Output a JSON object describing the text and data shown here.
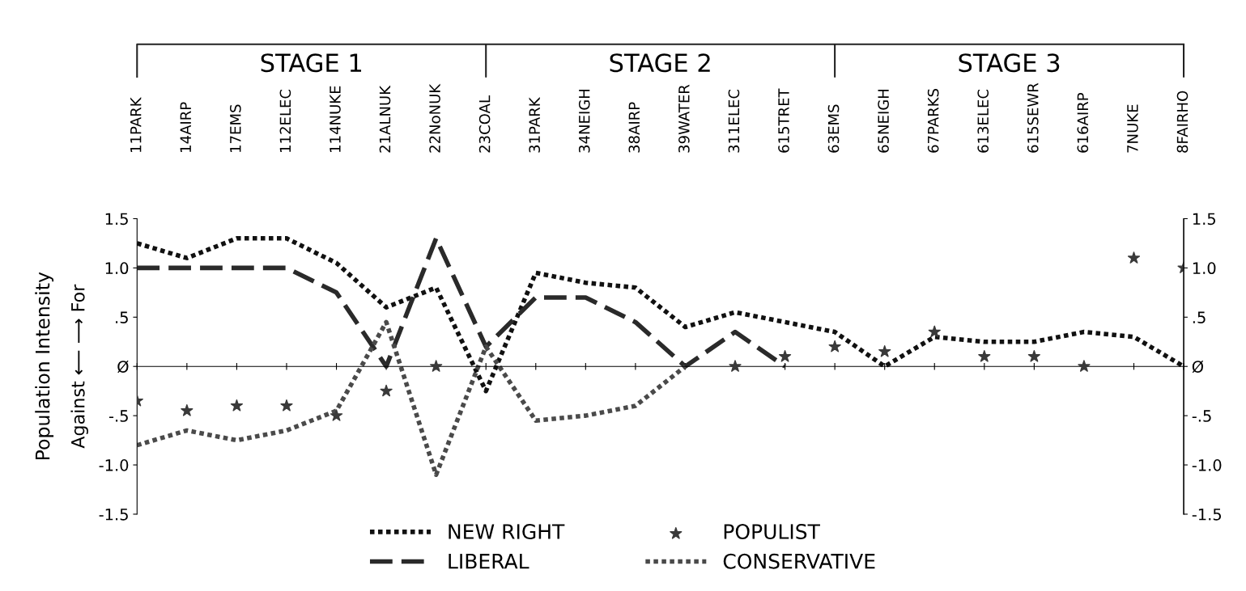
{
  "chart_data": {
    "type": "line",
    "categories": [
      "11PARK",
      "14AIRP",
      "17EMS",
      "112ELEC",
      "114NUKE",
      "21ALNUK",
      "22NoNUK",
      "23COAL",
      "31PARK",
      "34NEIGH",
      "38AIRP",
      "39WATER",
      "311ELEC",
      "615TRET",
      "63EMS",
      "65NEIGH",
      "67PARKS",
      "613ELEC",
      "615SEWR",
      "616AIRP",
      "7NUKE",
      "8FAIRHO"
    ],
    "ylabel": "Population Intensity",
    "annotations": [
      "Against ⟵ ⟶ For",
      "STAGE 1",
      "STAGE 2",
      "STAGE 3"
    ],
    "ylim": [
      -1.5,
      1.5
    ],
    "yticks": [
      {
        "value": -1.5,
        "label": "-1.5"
      },
      {
        "value": -1.0,
        "label": "-1.0"
      },
      {
        "value": -0.5,
        "label": "-.5"
      },
      {
        "value": 0,
        "label": "Ø"
      },
      {
        "value": 0.5,
        "label": ".5"
      },
      {
        "value": 1.0,
        "label": "1.0"
      },
      {
        "value": 1.5,
        "label": "1.5"
      }
    ],
    "y2lim": [
      -1.5,
      1.5
    ],
    "y2ticks": [
      {
        "value": -1.5,
        "label": "-1.5"
      },
      {
        "value": -1.0,
        "label": "-1.0"
      },
      {
        "value": -0.5,
        "label": "-.5"
      },
      {
        "value": 0,
        "label": "Ø"
      },
      {
        "value": 0.5,
        "label": ".5"
      },
      {
        "value": 1.0,
        "label": "1.0"
      },
      {
        "value": 1.5,
        "label": "1.5"
      }
    ],
    "legend": "bottom",
    "series": [
      {
        "name": "NEW RIGHT",
        "color": "#111111",
        "line_style": "dotted",
        "marker": "none",
        "values": [
          1.25,
          1.1,
          1.3,
          1.3,
          1.05,
          0.6,
          0.8,
          -0.25,
          0.95,
          0.85,
          0.8,
          0.4,
          0.55,
          0.45,
          0.35,
          0,
          0.3,
          0.25,
          0.25,
          0.35,
          0.3,
          0
        ]
      },
      {
        "name": "LIBERAL",
        "color": "#2a2a2a",
        "line_style": "dashed",
        "marker": "none",
        "values": [
          1.0,
          1.0,
          1.0,
          1.0,
          0.75,
          0,
          1.3,
          0.2,
          0.7,
          0.7,
          0.45,
          0,
          0.35,
          0,
          null,
          null,
          null,
          null,
          null,
          null,
          null,
          null
        ]
      },
      {
        "name": "POPULIST",
        "type": "scatter",
        "color": "#3a3a3a",
        "marker": "star",
        "values": [
          -0.35,
          -0.45,
          -0.4,
          -0.4,
          -0.5,
          -0.25,
          0,
          null,
          null,
          null,
          null,
          null,
          0,
          0.1,
          0.2,
          0.15,
          0.35,
          0.1,
          0.1,
          0,
          1.1,
          1.0
        ]
      },
      {
        "name": "CONSERVATIVE",
        "color": "#4a4a4a",
        "line_style": "dotted",
        "values": [
          -0.8,
          -0.65,
          -0.75,
          -0.65,
          -0.45,
          0.45,
          -1.1,
          0.2,
          -0.55,
          -0.5,
          -0.4,
          0,
          null,
          null,
          null,
          null,
          null,
          null,
          null,
          null,
          null,
          null
        ]
      }
    ]
  }
}
